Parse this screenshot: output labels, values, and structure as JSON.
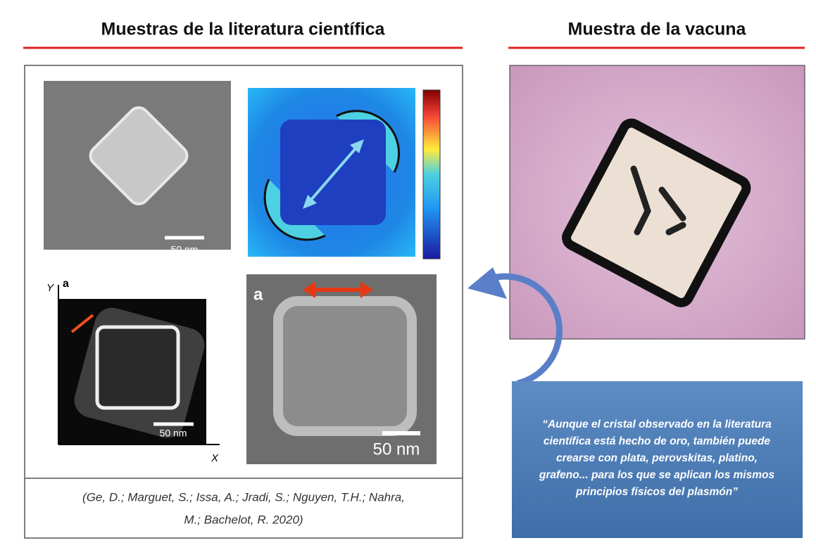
{
  "headings": {
    "left": "Muestras de la literatura científica",
    "right": "Muestra de la vacuna"
  },
  "panels": {
    "top_left_scale": "50 nm",
    "bottom_left_label": "a",
    "bottom_left_y_axis": "Y",
    "bottom_left_x_axis": "X",
    "bottom_left_scale": "50 nm",
    "bottom_right_label": "a",
    "bottom_right_scale": "50 nm"
  },
  "citation": [
    "(Ge, D.; Marguet, S.; Issa, A.; Jradi, S.; Nguyen, T.H.; Nahra,",
    "M.; Bachelot, R. 2020)"
  ],
  "quote": [
    "“Aunque el cristal observado en la literatura",
    "científica está hecho de oro, también puede",
    "crearse con plata, perovskitas, platino,",
    "grafeno... para los que se aplican los mismos",
    "principios físicos del plasmón”"
  ]
}
